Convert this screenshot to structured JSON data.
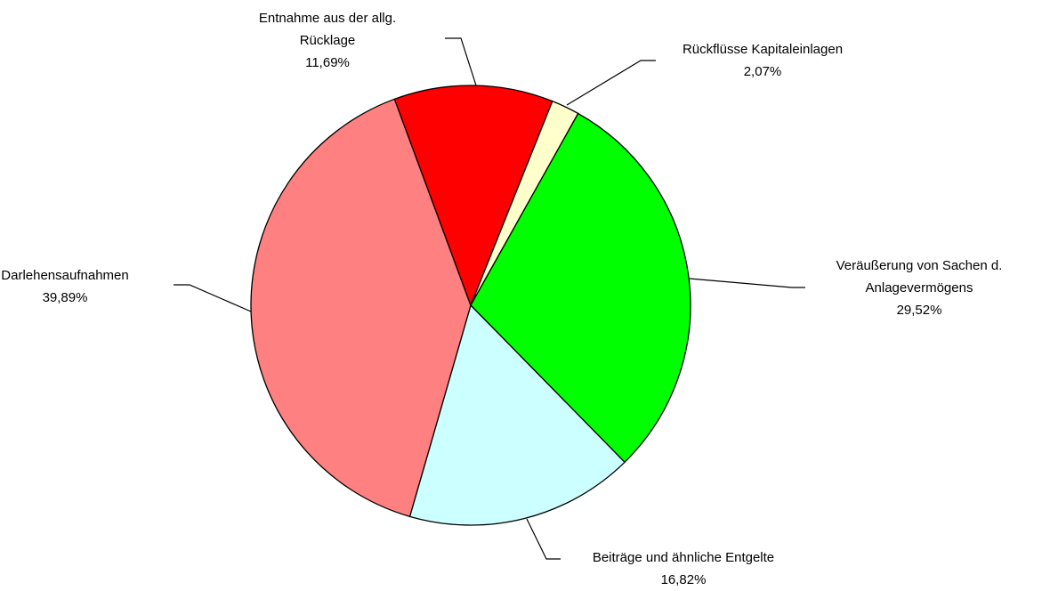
{
  "chart_data": {
    "type": "pie",
    "categories": [
      "Rückflüsse Kapitaleinlagen",
      "Veräußerung von Sachen d. Anlagevermögens",
      "Beiträge und ähnliche Entgelte",
      "Darlehensaufnahmen",
      "Entnahme aus der allg. Rücklage"
    ],
    "values": [
      2.07,
      29.52,
      16.82,
      39.89,
      11.69
    ],
    "value_labels": [
      "2,07%",
      "29,52%",
      "16,82%",
      "39,89%",
      "11,69%"
    ],
    "colors": [
      "#ffffcc",
      "#00ff00",
      "#ccffff",
      "#ff8080",
      "#ff0000"
    ]
  }
}
